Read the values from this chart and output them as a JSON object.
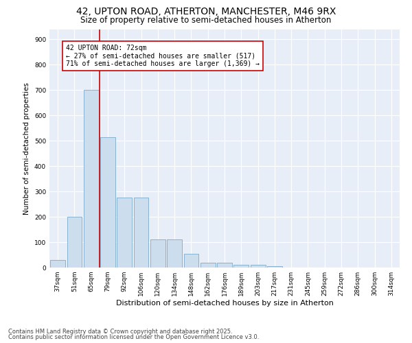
{
  "title1": "42, UPTON ROAD, ATHERTON, MANCHESTER, M46 9RX",
  "title2": "Size of property relative to semi-detached houses in Atherton",
  "xlabel": "Distribution of semi-detached houses by size in Atherton",
  "ylabel": "Number of semi-detached properties",
  "categories": [
    "37sqm",
    "51sqm",
    "65sqm",
    "79sqm",
    "92sqm",
    "106sqm",
    "120sqm",
    "134sqm",
    "148sqm",
    "162sqm",
    "176sqm",
    "189sqm",
    "203sqm",
    "217sqm",
    "231sqm",
    "245sqm",
    "259sqm",
    "272sqm",
    "286sqm",
    "300sqm",
    "314sqm"
  ],
  "values": [
    30,
    200,
    700,
    515,
    275,
    275,
    110,
    110,
    55,
    20,
    20,
    12,
    10,
    5,
    0,
    0,
    0,
    0,
    0,
    0,
    0
  ],
  "bar_color": "#ccdded",
  "bar_edge_color": "#7aaac8",
  "vline_color": "#cc0000",
  "annotation_text": "42 UPTON ROAD: 72sqm\n← 27% of semi-detached houses are smaller (517)\n71% of semi-detached houses are larger (1,369) →",
  "annotation_box_color": "white",
  "annotation_box_edge_color": "#cc0000",
  "ylim": [
    0,
    940
  ],
  "yticks": [
    0,
    100,
    200,
    300,
    400,
    500,
    600,
    700,
    800,
    900
  ],
  "bg_color": "#e8eef8",
  "footer1": "Contains HM Land Registry data © Crown copyright and database right 2025.",
  "footer2": "Contains public sector information licensed under the Open Government Licence v3.0.",
  "title1_fontsize": 10,
  "title2_fontsize": 8.5,
  "xlabel_fontsize": 8,
  "ylabel_fontsize": 7.5,
  "tick_fontsize": 6.5,
  "annot_fontsize": 7,
  "footer_fontsize": 6
}
